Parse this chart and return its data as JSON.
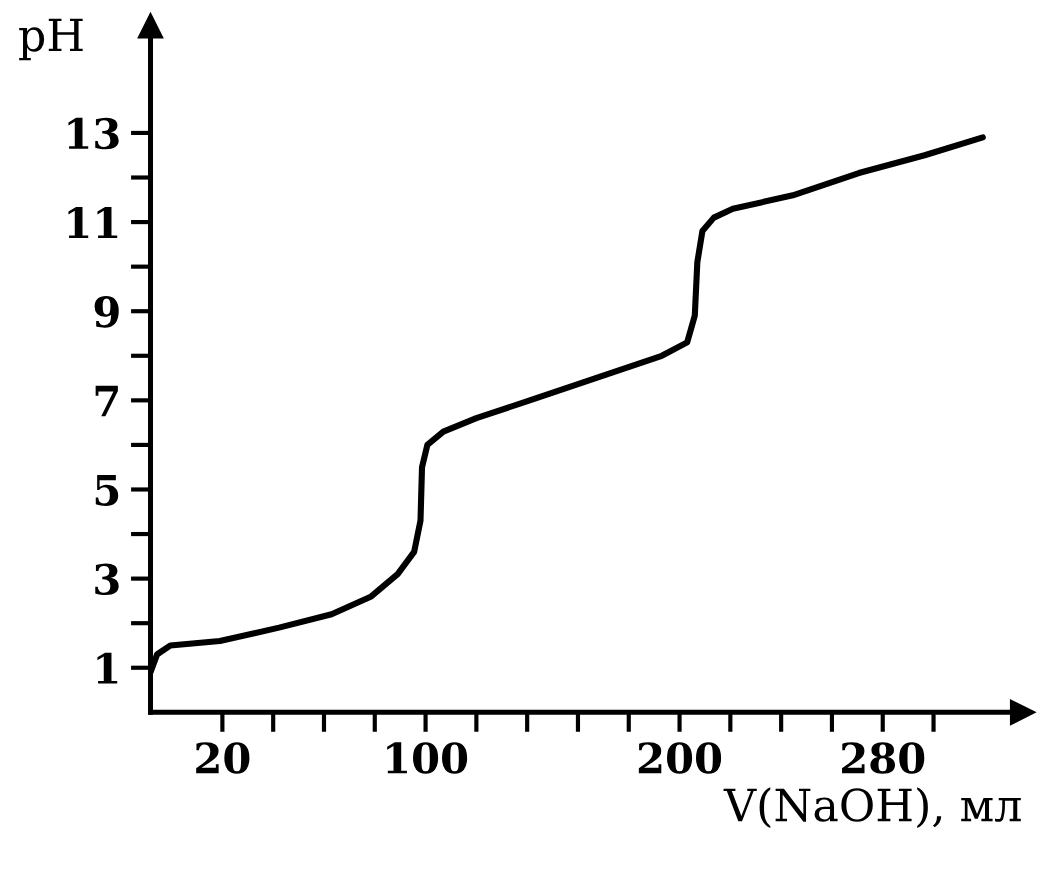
{
  "chart_data": {
    "type": "line",
    "xlabel": "V(NaOH), мл",
    "ylabel": "pH",
    "x": [
      -8.3,
      -5.7,
      -0.5,
      19,
      42.3,
      63,
      78.6,
      89,
      95.5,
      98,
      98.6,
      100.7,
      107,
      120,
      141,
      167,
      193,
      203,
      206,
      207,
      209,
      213.5,
      221,
      244.6,
      270.6,
      296.5,
      319.4
    ],
    "series": [
      {
        "color": "#000000",
        "values": [
          0.9,
          1.3,
          1.5,
          1.6,
          1.9,
          2.2,
          2.6,
          3.1,
          3.6,
          4.3,
          5.5,
          6.0,
          6.3,
          6.6,
          7.0,
          7.5,
          8.0,
          8.3,
          8.9,
          10.1,
          10.8,
          11.1,
          11.3,
          11.6,
          12.1,
          12.5,
          12.9
        ]
      }
    ],
    "xlim": [
      -8.3,
      335
    ],
    "ylim": [
      0,
      15.4
    ],
    "xticks": [
      {
        "value": 20,
        "label": "20"
      },
      {
        "value": 40,
        "label": null
      },
      {
        "value": 60,
        "label": null
      },
      {
        "value": 80,
        "label": null
      },
      {
        "value": 100,
        "label": "100"
      },
      {
        "value": 120,
        "label": null
      },
      {
        "value": 140,
        "label": null
      },
      {
        "value": 160,
        "label": null
      },
      {
        "value": 180,
        "label": null
      },
      {
        "value": 200,
        "label": "200"
      },
      {
        "value": 220,
        "label": null
      },
      {
        "value": 240,
        "label": null
      },
      {
        "value": 260,
        "label": null
      },
      {
        "value": 280,
        "label": "280"
      },
      {
        "value": 300,
        "label": null
      }
    ],
    "yticks": [
      1,
      {
        "value": 2,
        "label": null
      },
      3,
      {
        "value": 4,
        "label": null
      },
      5,
      {
        "value": 6,
        "label": null
      },
      7,
      {
        "value": 8,
        "label": null
      },
      9,
      {
        "value": 10,
        "label": null
      },
      11,
      {
        "value": 12,
        "label": null
      },
      13
    ],
    "grid": false,
    "legend": false,
    "marker": "none",
    "line_style": "solid"
  }
}
